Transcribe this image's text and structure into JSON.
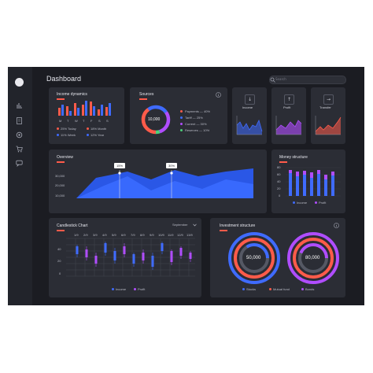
{
  "header": {
    "title": "Dashboard",
    "search_placeholder": "Search"
  },
  "sidebar": {
    "items": [
      "chart-icon",
      "document-icon",
      "settings-icon",
      "cart-icon",
      "chat-icon"
    ]
  },
  "income_dynamics": {
    "title": "Income dynamics",
    "days": [
      "M",
      "T",
      "W",
      "T",
      "F",
      "S",
      "S"
    ],
    "stats": [
      {
        "label": "25% Today",
        "color": "#ff5b4a"
      },
      {
        "label": "18% Month",
        "color": "#ff5b4a"
      },
      {
        "label": "11% Week",
        "color": "#3f6bff"
      },
      {
        "label": "12% Year",
        "color": "#3f6bff"
      }
    ]
  },
  "sources": {
    "title": "Sources",
    "center": "10,000",
    "items": [
      {
        "label": "Payments — 40%",
        "color": "#ff5b4a"
      },
      {
        "label": "Tariff — 25%",
        "color": "#3f6bff"
      },
      {
        "label": "Current — 30%",
        "color": "#b04dff"
      },
      {
        "label": "Reserves — 10%",
        "color": "#4dd07a"
      }
    ]
  },
  "mini_cards": [
    {
      "label": "Income",
      "arrow": "↓",
      "color": "#3f6bff"
    },
    {
      "label": "Profit",
      "arrow": "↑",
      "color": "#b04dff"
    },
    {
      "label": "Transfer",
      "arrow": "→",
      "color": "#ff5b4a"
    }
  ],
  "overview": {
    "title": "Overview",
    "yticks": [
      "30,000",
      "20,000",
      "10,000"
    ],
    "markers": [
      "15%",
      "30%"
    ]
  },
  "money_structure": {
    "title": "Money structure",
    "yticks": [
      "80",
      "60",
      "40",
      "20",
      "0"
    ],
    "legend": [
      {
        "label": "Income",
        "color": "#3f6bff"
      },
      {
        "label": "Profit",
        "color": "#b04dff"
      }
    ]
  },
  "candlestick": {
    "title": "Candlestick Chart",
    "month": "September",
    "dates": [
      "1/9",
      "2/9",
      "3/9",
      "4/9",
      "5/9",
      "6/9",
      "7/9",
      "8/9",
      "9/9",
      "10/9",
      "11/9",
      "12/9",
      "13/9"
    ],
    "yticks": [
      "40",
      "20",
      "0"
    ],
    "legend": [
      {
        "label": "Income",
        "color": "#3f6bff"
      },
      {
        "label": "Profit",
        "color": "#b04dff"
      }
    ]
  },
  "investment": {
    "title": "Investment structure",
    "values": [
      "50,000",
      "80,000"
    ],
    "legend": [
      {
        "label": "Stocks",
        "color": "#3f6bff"
      },
      {
        "label": "Mutual fund",
        "color": "#ff5b4a"
      },
      {
        "label": "Bonds",
        "color": "#b04dff"
      }
    ]
  },
  "colors": {
    "red": "#ff5b4a",
    "blue": "#3f6bff",
    "purple": "#b04dff",
    "green": "#4dd07a"
  }
}
